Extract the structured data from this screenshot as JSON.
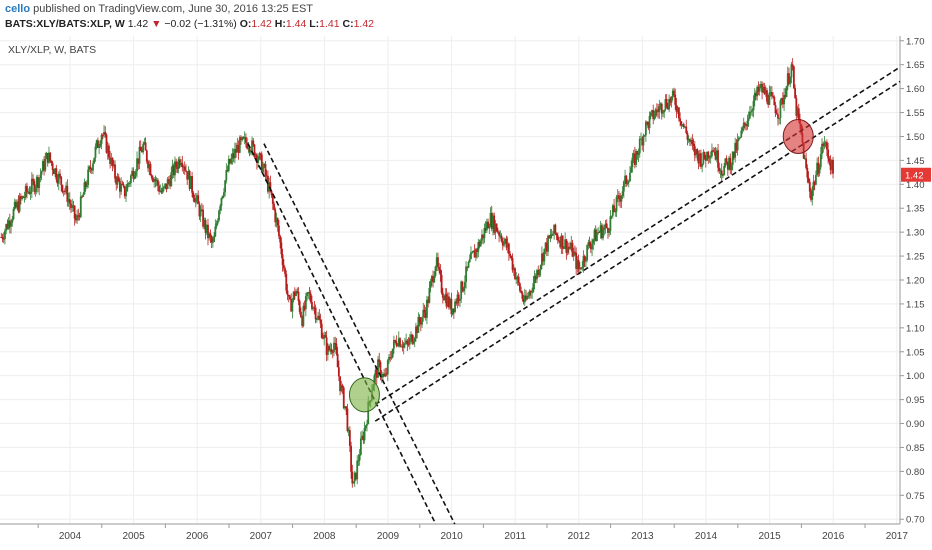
{
  "header": {
    "user": "cello",
    "published": "published on TradingView.com, June 30, 2016 13:25 EST",
    "symbol": "BATS:XLY/BATS:XLP, W",
    "last": "1.42",
    "down_arrow": "▼",
    "change": "−0.02 (−1.31%)",
    "o_label": "O:",
    "o_val": "1.42",
    "h_label": "H:",
    "h_val": "1.44",
    "l_label": "L:",
    "l_val": "1.41",
    "c_label": "C:",
    "c_val": "1.42"
  },
  "colors": {
    "up": "#2e7d32",
    "down": "#b71c1c",
    "green_circle": "#7cb342",
    "red_circle": "#d32f2f",
    "price_tag": "#e53935",
    "axis_text": "#444444",
    "grid": "#eeeeee"
  },
  "chart_data": {
    "type": "candlestick",
    "legend_text": "XLY/XLP, W, BATS",
    "y_axis_side": "right",
    "ylim": [
      0.69,
      1.71
    ],
    "y_ticks": [
      "1.70",
      "1.65",
      "1.60",
      "1.55",
      "1.50",
      "1.45",
      "1.40",
      "1.35",
      "1.30",
      "1.25",
      "1.20",
      "1.15",
      "1.10",
      "1.05",
      "1.00",
      "0.95",
      "0.90",
      "0.85",
      "0.80",
      "0.75",
      "0.70"
    ],
    "x_ticks": [
      "2004",
      "2005",
      "2006",
      "2007",
      "2008",
      "2009",
      "2010",
      "2011",
      "2012",
      "2013",
      "2014",
      "2015",
      "2016",
      "2017"
    ],
    "xlim": [
      2003.4,
      2017.55
    ],
    "last_price_label": "1.42",
    "price_path": [
      [
        2003.42,
        1.29
      ],
      [
        2003.6,
        1.34
      ],
      [
        2003.8,
        1.38
      ],
      [
        2004.0,
        1.41
      ],
      [
        2004.15,
        1.46
      ],
      [
        2004.3,
        1.42
      ],
      [
        2004.45,
        1.38
      ],
      [
        2004.6,
        1.32
      ],
      [
        2004.75,
        1.4
      ],
      [
        2004.9,
        1.47
      ],
      [
        2005.0,
        1.51
      ],
      [
        2005.1,
        1.47
      ],
      [
        2005.2,
        1.42
      ],
      [
        2005.35,
        1.38
      ],
      [
        2005.5,
        1.43
      ],
      [
        2005.65,
        1.48
      ],
      [
        2005.8,
        1.42
      ],
      [
        2005.95,
        1.38
      ],
      [
        2006.1,
        1.42
      ],
      [
        2006.25,
        1.46
      ],
      [
        2006.4,
        1.4
      ],
      [
        2006.55,
        1.34
      ],
      [
        2006.65,
        1.3
      ],
      [
        2006.75,
        1.27
      ],
      [
        2006.85,
        1.36
      ],
      [
        2007.0,
        1.44
      ],
      [
        2007.15,
        1.48
      ],
      [
        2007.3,
        1.49
      ],
      [
        2007.45,
        1.46
      ],
      [
        2007.55,
        1.43
      ],
      [
        2007.65,
        1.38
      ],
      [
        2007.75,
        1.32
      ],
      [
        2007.85,
        1.24
      ],
      [
        2007.95,
        1.14
      ],
      [
        2008.05,
        1.18
      ],
      [
        2008.15,
        1.12
      ],
      [
        2008.25,
        1.17
      ],
      [
        2008.35,
        1.14
      ],
      [
        2008.45,
        1.1
      ],
      [
        2008.55,
        1.05
      ],
      [
        2008.65,
        1.07
      ],
      [
        2008.75,
        0.98
      ],
      [
        2008.85,
        0.92
      ],
      [
        2008.95,
        0.76
      ],
      [
        2009.05,
        0.84
      ],
      [
        2009.15,
        0.9
      ],
      [
        2009.25,
        0.98
      ],
      [
        2009.35,
        1.02
      ],
      [
        2009.45,
        0.99
      ],
      [
        2009.55,
        1.05
      ],
      [
        2009.65,
        1.08
      ],
      [
        2009.8,
        1.06
      ],
      [
        2009.95,
        1.1
      ],
      [
        2010.1,
        1.14
      ],
      [
        2010.25,
        1.24
      ],
      [
        2010.35,
        1.18
      ],
      [
        2010.5,
        1.14
      ],
      [
        2010.65,
        1.18
      ],
      [
        2010.8,
        1.24
      ],
      [
        2010.95,
        1.28
      ],
      [
        2011.1,
        1.33
      ],
      [
        2011.25,
        1.3
      ],
      [
        2011.4,
        1.26
      ],
      [
        2011.55,
        1.19
      ],
      [
        2011.65,
        1.15
      ],
      [
        2011.8,
        1.2
      ],
      [
        2011.95,
        1.26
      ],
      [
        2012.1,
        1.3
      ],
      [
        2012.25,
        1.28
      ],
      [
        2012.4,
        1.26
      ],
      [
        2012.5,
        1.22
      ],
      [
        2012.65,
        1.27
      ],
      [
        2012.8,
        1.3
      ],
      [
        2012.95,
        1.31
      ],
      [
        2013.1,
        1.36
      ],
      [
        2013.25,
        1.41
      ],
      [
        2013.4,
        1.46
      ],
      [
        2013.55,
        1.52
      ],
      [
        2013.7,
        1.55
      ],
      [
        2013.85,
        1.57
      ],
      [
        2014.0,
        1.58
      ],
      [
        2014.15,
        1.52
      ],
      [
        2014.3,
        1.47
      ],
      [
        2014.45,
        1.45
      ],
      [
        2014.6,
        1.48
      ],
      [
        2014.75,
        1.43
      ],
      [
        2014.9,
        1.45
      ],
      [
        2015.05,
        1.5
      ],
      [
        2015.2,
        1.56
      ],
      [
        2015.35,
        1.6
      ],
      [
        2015.5,
        1.58
      ],
      [
        2015.65,
        1.55
      ],
      [
        2015.75,
        1.6
      ],
      [
        2015.85,
        1.65
      ],
      [
        2015.9,
        1.57
      ],
      [
        2016.0,
        1.5
      ],
      [
        2016.08,
        1.42
      ],
      [
        2016.15,
        1.38
      ],
      [
        2016.25,
        1.43
      ],
      [
        2016.35,
        1.49
      ],
      [
        2016.45,
        1.45
      ],
      [
        2016.5,
        1.42
      ]
    ],
    "trendlines": [
      {
        "style": "dashed",
        "p1": [
          2007.3,
          1.485
        ],
        "p2": [
          2010.25,
          0.69
        ]
      },
      {
        "style": "dashed",
        "p1": [
          2007.55,
          1.485
        ],
        "p2": [
          2010.55,
          0.69
        ]
      },
      {
        "style": "dashed",
        "p1": [
          2009.3,
          0.94
        ],
        "p2": [
          2017.55,
          1.645
        ]
      },
      {
        "style": "dashed",
        "p1": [
          2009.3,
          0.905
        ],
        "p2": [
          2017.55,
          1.615
        ]
      }
    ],
    "markers": [
      {
        "x": 2009.13,
        "y": 0.96,
        "color": "green"
      },
      {
        "x": 2015.95,
        "y": 1.5,
        "color": "red"
      }
    ]
  }
}
